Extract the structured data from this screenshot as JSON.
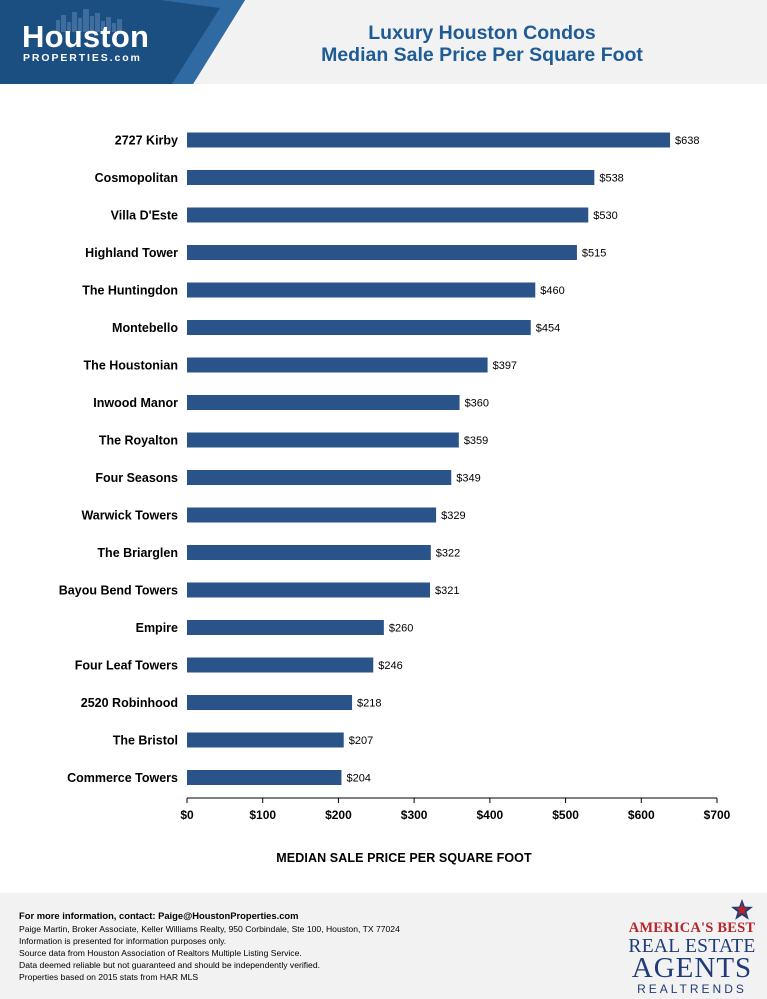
{
  "logo": {
    "name": "Houston",
    "sub": "PROPERTIES.com"
  },
  "title_lines": [
    "Luxury Houston Condos",
    "Median Sale Price Per Square Foot"
  ],
  "chart_data": {
    "type": "bar",
    "orientation": "horizontal",
    "title": "Luxury Houston Condos Median Sale Price Per Square Foot",
    "xlabel": "MEDIAN SALE PRICE PER SQUARE FOOT",
    "ylabel": "",
    "xlim": [
      0,
      700
    ],
    "ticks": [
      0,
      100,
      200,
      300,
      400,
      500,
      600,
      700
    ],
    "tick_labels": [
      "$0",
      "$100",
      "$200",
      "$300",
      "$400",
      "$500",
      "$600",
      "$700"
    ],
    "categories": [
      "2727 Kirby",
      "Cosmopolitan",
      "Villa D'Este",
      "Highland Tower",
      "The Huntingdon",
      "Montebello",
      "The Houstonian",
      "Inwood Manor",
      "The Royalton",
      "Four Seasons",
      "Warwick Towers",
      "The Briarglen",
      "Bayou Bend Towers",
      "Empire",
      "Four Leaf Towers",
      "2520 Robinhood",
      "The Bristol",
      "Commerce Towers"
    ],
    "values": [
      638,
      538,
      530,
      515,
      460,
      454,
      397,
      360,
      359,
      349,
      329,
      322,
      321,
      260,
      246,
      218,
      207,
      204
    ],
    "value_labels": [
      "$638",
      "$538",
      "$530",
      "$515",
      "$460",
      "$454",
      "$397",
      "$360",
      "$359",
      "$349",
      "$329",
      "$322",
      "$321",
      "$260",
      "$246",
      "$218",
      "$207",
      "$204"
    ],
    "bar_color": "#2a5389",
    "grid": false
  },
  "footer": {
    "contact": "For more information, contact: Paige@HoustonProperties.com",
    "lines": [
      "Paige Martin, Broker Associate, Keller Williams Realty, 950 Corbindale, Ste 100, Houston, TX 77024",
      "Information is presented for information purposes only.",
      "Source data from Houston Association of Realtors Multiple Listing Service.",
      "Data deemed reliable but not guaranteed and should be independently verified.",
      "Properties based on 2015 stats from HAR MLS"
    ]
  },
  "badge": {
    "line1": "AMERICA'S BEST",
    "line2": "REAL ESTATE",
    "line3": "AGENTS",
    "line4": "REALTRENDS"
  },
  "colors": {
    "title": "#1f5b95",
    "logo_bg": "#1b4f82",
    "header_bg": "#f2f2f2",
    "badge_red": "#b7242a",
    "badge_blue": "#1f3b78"
  }
}
